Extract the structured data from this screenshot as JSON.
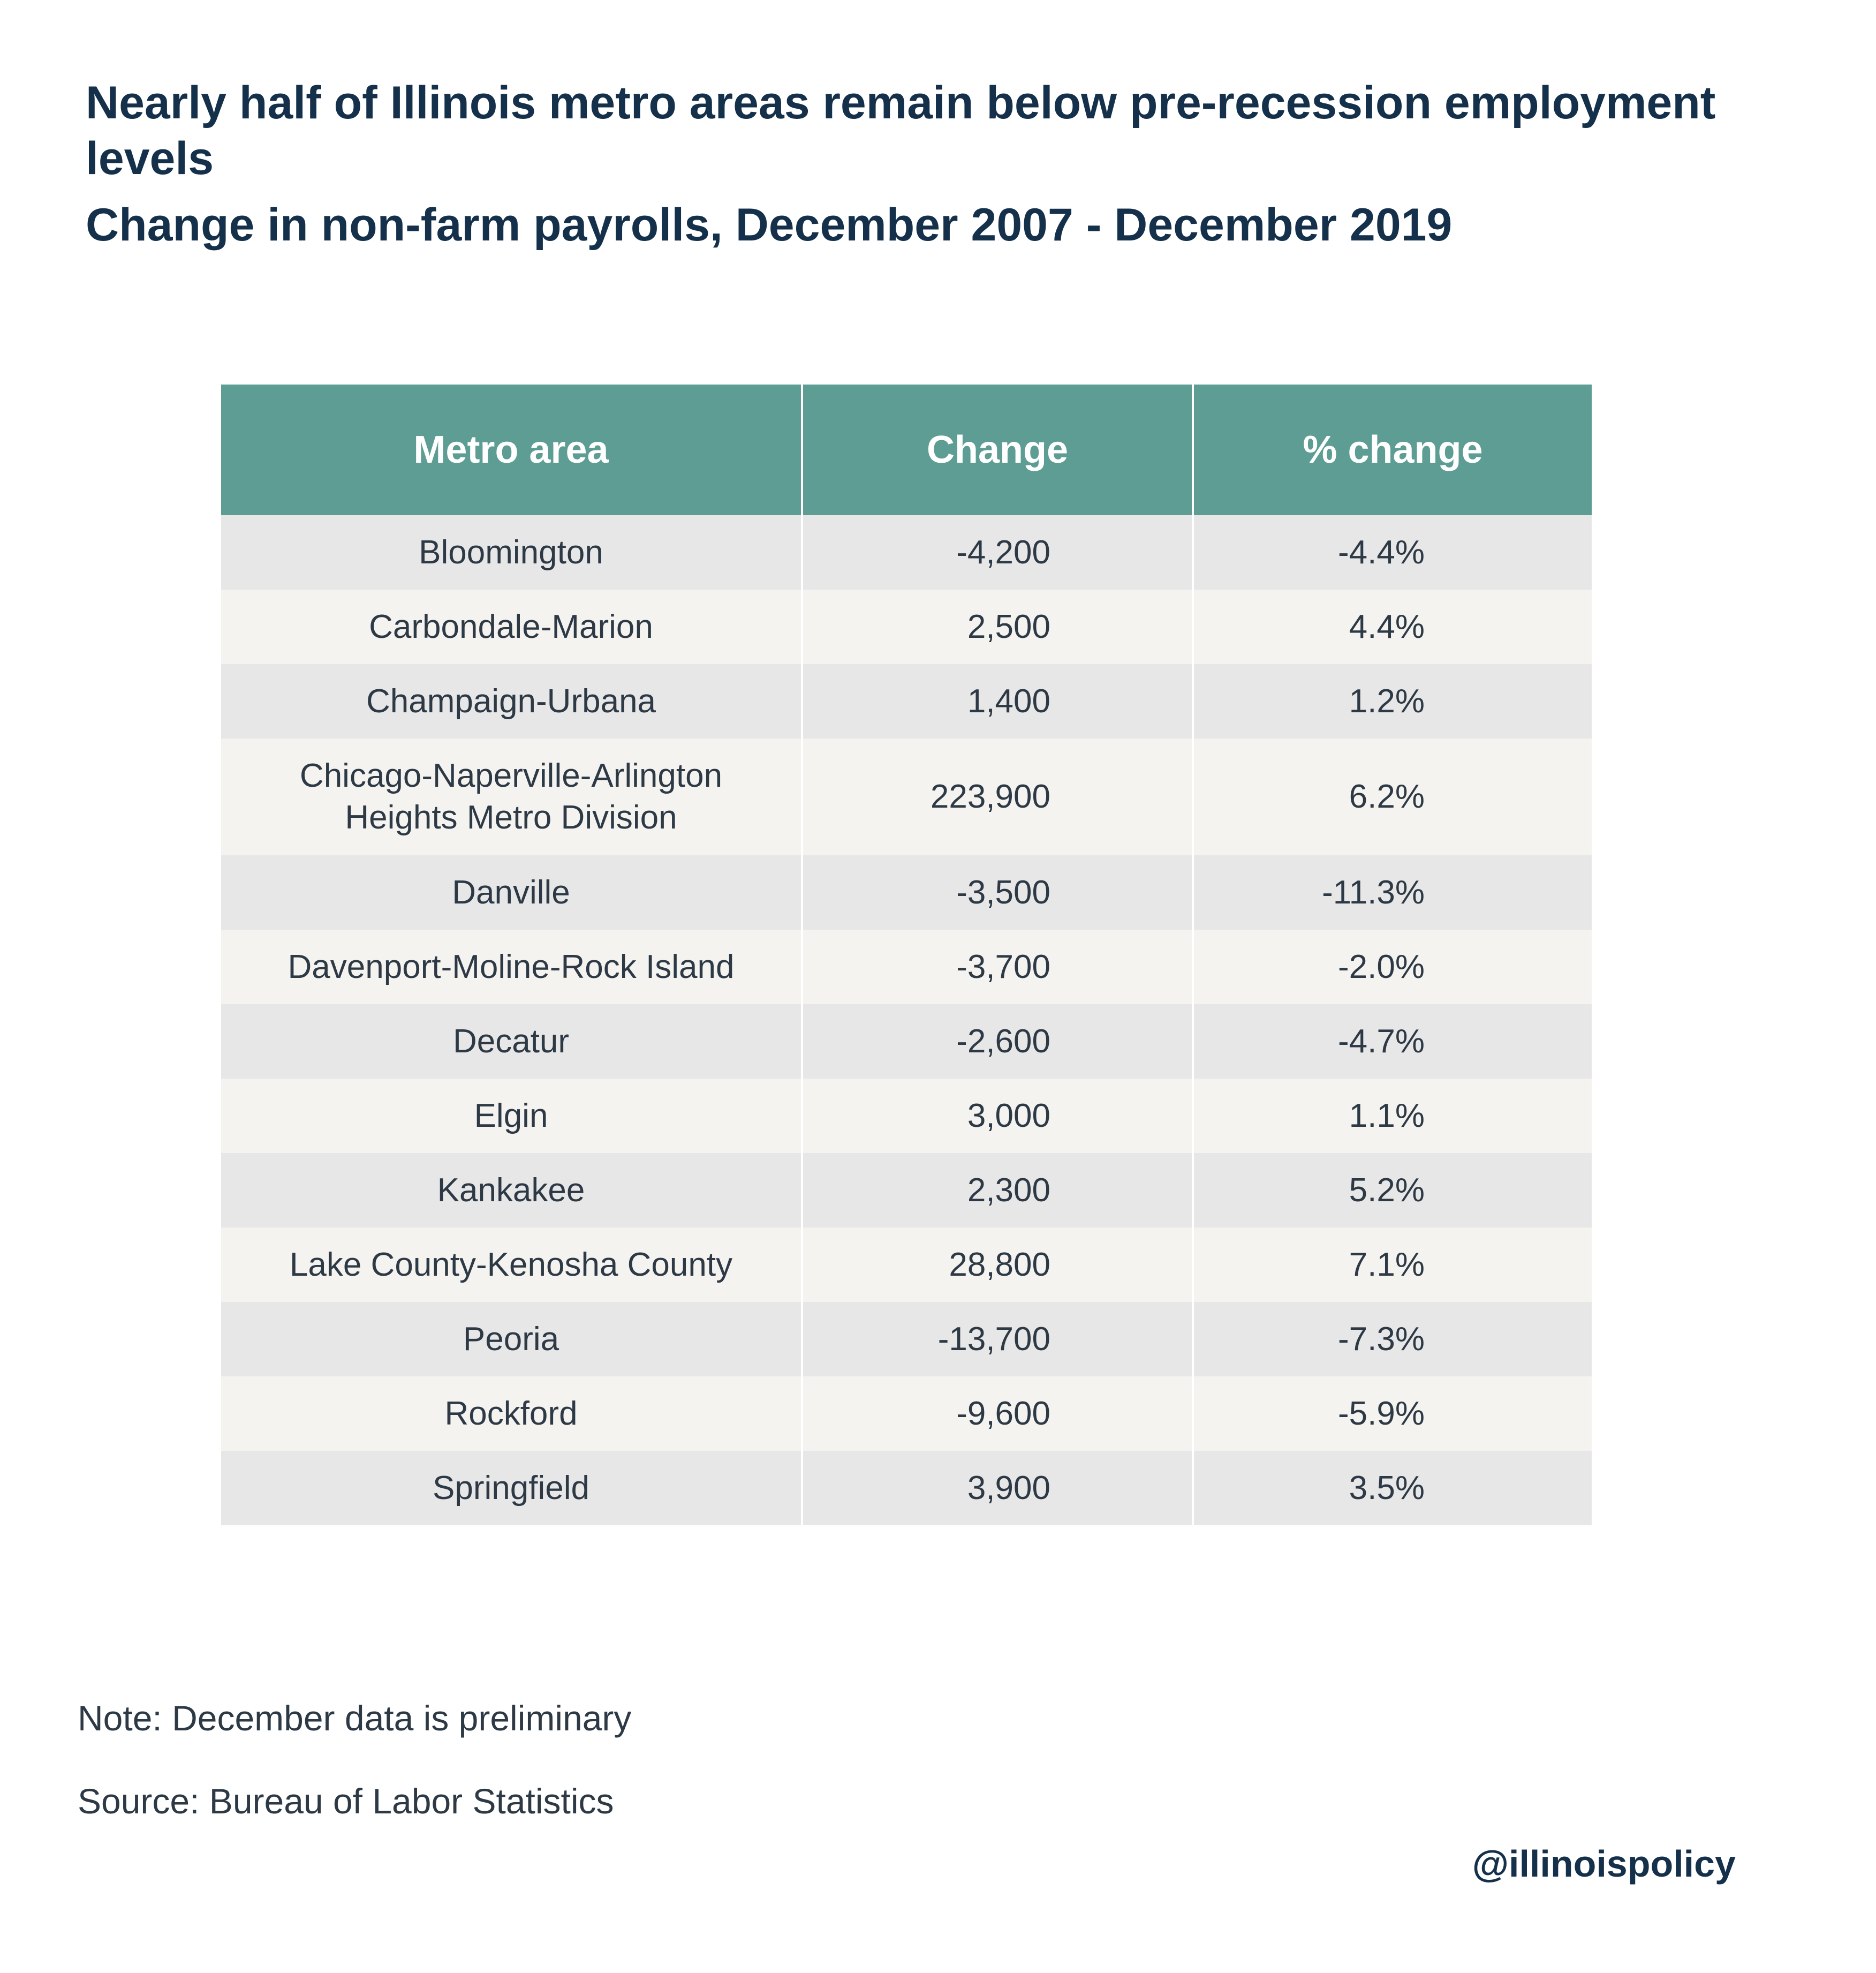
{
  "chart_data": {
    "type": "table",
    "title": "Nearly half of Illinois metro areas remain below pre-recession employment levels",
    "subtitle": "Change in non-farm payrolls, December 2007 - December 2019",
    "columns": [
      "Metro area",
      "Change",
      "% change"
    ],
    "rows": [
      {
        "metro": "Bloomington",
        "change": "-4,200",
        "pct": "-4.4%"
      },
      {
        "metro": "Carbondale-Marion",
        "change": "2,500",
        "pct": "4.4%"
      },
      {
        "metro": "Champaign-Urbana",
        "change": "1,400",
        "pct": "1.2%"
      },
      {
        "metro": "Chicago-Naperville-Arlington Heights Metro Division",
        "change": "223,900",
        "pct": "6.2%"
      },
      {
        "metro": "Danville",
        "change": "-3,500",
        "pct": "-11.3%"
      },
      {
        "metro": "Davenport-Moline-Rock Island",
        "change": "-3,700",
        "pct": "-2.0%"
      },
      {
        "metro": "Decatur",
        "change": "-2,600",
        "pct": "-4.7%"
      },
      {
        "metro": "Elgin",
        "change": "3,000",
        "pct": "1.1%"
      },
      {
        "metro": "Kankakee",
        "change": "2,300",
        "pct": "5.2%"
      },
      {
        "metro": "Lake County-Kenosha County",
        "change": "28,800",
        "pct": "7.1%"
      },
      {
        "metro": "Peoria",
        "change": "-13,700",
        "pct": "-7.3%"
      },
      {
        "metro": "Rockford",
        "change": "-9,600",
        "pct": "-5.9%"
      },
      {
        "metro": "Springfield",
        "change": "3,900",
        "pct": "3.5%"
      }
    ],
    "header_color": "#5d9d93",
    "row_colors": [
      "#e8e7e8",
      "#f5f3f0"
    ]
  },
  "footer": {
    "note": "Note: December data is preliminary",
    "source": "Source: Bureau of Labor Statistics",
    "handle": "@illinoispolicy"
  }
}
